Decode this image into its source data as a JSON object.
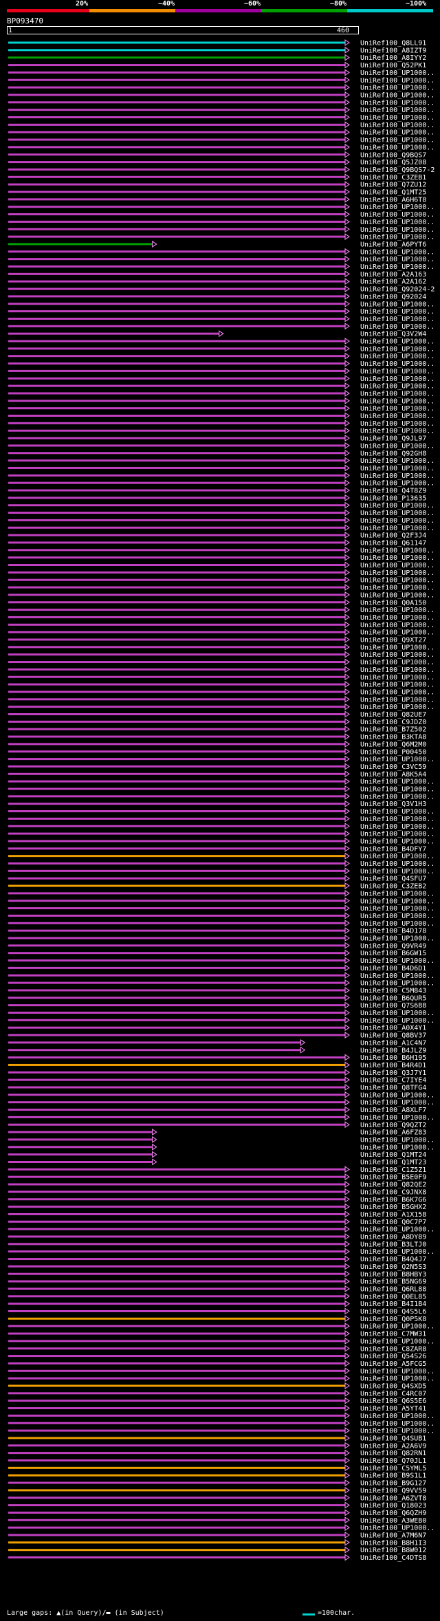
{
  "legend": {
    "labels": [
      "20%",
      "~40%",
      "~60%",
      "~80%",
      "~100%"
    ],
    "colors": [
      "#e6001a",
      "#f28c00",
      "#a000a0",
      "#00a000",
      "#00c8c8"
    ]
  },
  "query": {
    "title": "BP093470",
    "start": "1",
    "end": "460"
  },
  "hit_colors": {
    "cyan": "#00d2d2",
    "green": "#00a000",
    "magenta": "#c040c0",
    "orange": "#f0a000",
    "arrow": "#ff90ff"
  },
  "hits": [
    {
      "label": "UniRef100_Q8LL91",
      "color": "cyan",
      "end": 460
    },
    {
      "label": "UniRef100_A8IZT9",
      "color": "cyan",
      "end": 460
    },
    {
      "label": "UniRef100_A8IYY2",
      "color": "green",
      "end": 460
    },
    {
      "label": "UniRef100_Q52PK1",
      "color": "magenta",
      "end": 460
    },
    {
      "label": "UniRef100_UP1000..",
      "color": "magenta",
      "end": 460
    },
    {
      "label": "UniRef100_UP1000..",
      "color": "magenta",
      "end": 460
    },
    {
      "label": "UniRef100_UP1000..",
      "color": "magenta",
      "end": 460
    },
    {
      "label": "UniRef100_UP1000..",
      "color": "magenta",
      "end": 460
    },
    {
      "label": "UniRef100_UP1000..",
      "color": "magenta",
      "end": 460
    },
    {
      "label": "UniRef100_UP1000..",
      "color": "magenta",
      "end": 460
    },
    {
      "label": "UniRef100_UP1000..",
      "color": "magenta",
      "end": 460
    },
    {
      "label": "UniRef100_UP1000..",
      "color": "magenta",
      "end": 460
    },
    {
      "label": "UniRef100_UP1000..",
      "color": "magenta",
      "end": 460
    },
    {
      "label": "UniRef100_UP1000..",
      "color": "magenta",
      "end": 460
    },
    {
      "label": "UniRef100_UP1000..",
      "color": "magenta",
      "end": 460
    },
    {
      "label": "UniRef100_Q9BQS7",
      "color": "magenta",
      "end": 460
    },
    {
      "label": "UniRef100_Q5JZ08",
      "color": "magenta",
      "end": 460
    },
    {
      "label": "UniRef100_Q9BQS7-2",
      "color": "magenta",
      "end": 460
    },
    {
      "label": "UniRef100_C3ZEB1",
      "color": "magenta",
      "end": 460
    },
    {
      "label": "UniRef100_Q7ZU12",
      "color": "magenta",
      "end": 460
    },
    {
      "label": "UniRef100_Q1MT25",
      "color": "magenta",
      "end": 460
    },
    {
      "label": "UniRef100_A6H6T8",
      "color": "magenta",
      "end": 460
    },
    {
      "label": "UniRef100_UP1000..",
      "color": "magenta",
      "end": 460
    },
    {
      "label": "UniRef100_UP1000..",
      "color": "magenta",
      "end": 460
    },
    {
      "label": "UniRef100_UP1000..",
      "color": "magenta",
      "end": 460
    },
    {
      "label": "UniRef100_UP1000..",
      "color": "magenta",
      "end": 460
    },
    {
      "label": "UniRef100_UP1000..",
      "color": "magenta",
      "end": 460
    },
    {
      "label": "UniRef100_A6PYT6",
      "color": "green",
      "end": 200
    },
    {
      "label": "UniRef100_UP1000..",
      "color": "magenta",
      "end": 460
    },
    {
      "label": "UniRef100_UP1000..",
      "color": "magenta",
      "end": 460
    },
    {
      "label": "UniRef100_UP1000..",
      "color": "magenta",
      "end": 460
    },
    {
      "label": "UniRef100_A2A163",
      "color": "magenta",
      "end": 460
    },
    {
      "label": "UniRef100_A2A162",
      "color": "magenta",
      "end": 460
    },
    {
      "label": "UniRef100_Q92024-2",
      "color": "magenta",
      "end": 460
    },
    {
      "label": "UniRef100_Q92024",
      "color": "magenta",
      "end": 460
    },
    {
      "label": "UniRef100_UP1000..",
      "color": "magenta",
      "end": 460
    },
    {
      "label": "UniRef100_UP1000..",
      "color": "magenta",
      "end": 460
    },
    {
      "label": "UniRef100_UP1000..",
      "color": "magenta",
      "end": 460
    },
    {
      "label": "UniRef100_UP1000..",
      "color": "magenta",
      "end": 460
    },
    {
      "label": "UniRef100_Q3V2W4",
      "color": "magenta",
      "end": 290
    },
    {
      "label": "UniRef100_UP1000..",
      "color": "magenta",
      "end": 460
    },
    {
      "label": "UniRef100_UP1000..",
      "color": "magenta",
      "end": 460
    },
    {
      "label": "UniRef100_UP1000..",
      "color": "magenta",
      "end": 460
    },
    {
      "label": "UniRef100_UP1000..",
      "color": "magenta",
      "end": 460
    },
    {
      "label": "UniRef100_UP1000..",
      "color": "magenta",
      "end": 460
    },
    {
      "label": "UniRef100_UP1000..",
      "color": "magenta",
      "end": 460
    },
    {
      "label": "UniRef100_UP1000..",
      "color": "magenta",
      "end": 460
    },
    {
      "label": "UniRef100_UP1000..",
      "color": "magenta",
      "end": 460
    },
    {
      "label": "UniRef100_UP1000..",
      "color": "magenta",
      "end": 460
    },
    {
      "label": "UniRef100_UP1000..",
      "color": "magenta",
      "end": 460
    },
    {
      "label": "UniRef100_UP1000..",
      "color": "magenta",
      "end": 460
    },
    {
      "label": "UniRef100_UP1000..",
      "color": "magenta",
      "end": 460
    },
    {
      "label": "UniRef100_UP1000..",
      "color": "magenta",
      "end": 460
    },
    {
      "label": "UniRef100_Q9JL97",
      "color": "magenta",
      "end": 460
    },
    {
      "label": "UniRef100_UP1000..",
      "color": "magenta",
      "end": 460
    },
    {
      "label": "UniRef100_Q92GH8",
      "color": "magenta",
      "end": 460
    },
    {
      "label": "UniRef100_UP1000..",
      "color": "magenta",
      "end": 460
    },
    {
      "label": "UniRef100_UP1000..",
      "color": "magenta",
      "end": 460
    },
    {
      "label": "UniRef100_UP1000..",
      "color": "magenta",
      "end": 460
    },
    {
      "label": "UniRef100_UP1000..",
      "color": "magenta",
      "end": 460
    },
    {
      "label": "UniRef100_Q4T8Z9",
      "color": "magenta",
      "end": 460
    },
    {
      "label": "UniRef100_P13635",
      "color": "magenta",
      "end": 460
    },
    {
      "label": "UniRef100_UP1000..",
      "color": "magenta",
      "end": 460
    },
    {
      "label": "UniRef100_UP1000..",
      "color": "magenta",
      "end": 460
    },
    {
      "label": "UniRef100_UP1000..",
      "color": "magenta",
      "end": 460
    },
    {
      "label": "UniRef100_UP1000..",
      "color": "magenta",
      "end": 460
    },
    {
      "label": "UniRef100_Q2F3J4",
      "color": "magenta",
      "end": 460
    },
    {
      "label": "UniRef100_Q61147",
      "color": "magenta",
      "end": 460
    },
    {
      "label": "UniRef100_UP1000..",
      "color": "magenta",
      "end": 460
    },
    {
      "label": "UniRef100_UP1000..",
      "color": "magenta",
      "end": 460
    },
    {
      "label": "UniRef100_UP1000..",
      "color": "magenta",
      "end": 460
    },
    {
      "label": "UniRef100_UP1000..",
      "color": "magenta",
      "end": 460
    },
    {
      "label": "UniRef100_UP1000..",
      "color": "magenta",
      "end": 460
    },
    {
      "label": "UniRef100_UP1000..",
      "color": "magenta",
      "end": 460
    },
    {
      "label": "UniRef100_UP1000..",
      "color": "magenta",
      "end": 460
    },
    {
      "label": "UniRef100_Q0A150",
      "color": "magenta",
      "end": 460
    },
    {
      "label": "UniRef100_UP1000..",
      "color": "magenta",
      "end": 460
    },
    {
      "label": "UniRef100_UP1000..",
      "color": "magenta",
      "end": 460
    },
    {
      "label": "UniRef100_UP1000..",
      "color": "magenta",
      "end": 460
    },
    {
      "label": "UniRef100_UP1000..",
      "color": "magenta",
      "end": 460
    },
    {
      "label": "UniRef100_Q9XT27",
      "color": "magenta",
      "end": 460
    },
    {
      "label": "UniRef100_UP1000..",
      "color": "magenta",
      "end": 460
    },
    {
      "label": "UniRef100_UP1000..",
      "color": "magenta",
      "end": 460
    },
    {
      "label": "UniRef100_UP1000..",
      "color": "magenta",
      "end": 460
    },
    {
      "label": "UniRef100_UP1000..",
      "color": "magenta",
      "end": 460
    },
    {
      "label": "UniRef100_UP1000..",
      "color": "magenta",
      "end": 460
    },
    {
      "label": "UniRef100_UP1000..",
      "color": "magenta",
      "end": 460
    },
    {
      "label": "UniRef100_UP1000..",
      "color": "magenta",
      "end": 460
    },
    {
      "label": "UniRef100_UP1000..",
      "color": "magenta",
      "end": 460
    },
    {
      "label": "UniRef100_UP1000..",
      "color": "magenta",
      "end": 460
    },
    {
      "label": "UniRef100_Q82UE7",
      "color": "magenta",
      "end": 460
    },
    {
      "label": "UniRef100_C9JDZ0",
      "color": "magenta",
      "end": 460
    },
    {
      "label": "UniRef100_B7Z502",
      "color": "magenta",
      "end": 460
    },
    {
      "label": "UniRef100_B3KTA8",
      "color": "magenta",
      "end": 460
    },
    {
      "label": "UniRef100_Q6M2M0",
      "color": "magenta",
      "end": 460
    },
    {
      "label": "UniRef100_P00450",
      "color": "magenta",
      "end": 460
    },
    {
      "label": "UniRef100_UP1000..",
      "color": "magenta",
      "end": 460
    },
    {
      "label": "UniRef100_C3VC59",
      "color": "magenta",
      "end": 460
    },
    {
      "label": "UniRef100_A8K5A4",
      "color": "magenta",
      "end": 460
    },
    {
      "label": "UniRef100_UP1000..",
      "color": "magenta",
      "end": 460
    },
    {
      "label": "UniRef100_UP1000..",
      "color": "magenta",
      "end": 460
    },
    {
      "label": "UniRef100_UP1000..",
      "color": "magenta",
      "end": 460
    },
    {
      "label": "UniRef100_Q3V1H3",
      "color": "magenta",
      "end": 460
    },
    {
      "label": "UniRef100_UP1000..",
      "color": "magenta",
      "end": 460
    },
    {
      "label": "UniRef100_UP1000..",
      "color": "magenta",
      "end": 460
    },
    {
      "label": "UniRef100_UP1000..",
      "color": "magenta",
      "end": 460
    },
    {
      "label": "UniRef100_UP1000..",
      "color": "magenta",
      "end": 460
    },
    {
      "label": "UniRef100_UP1000..",
      "color": "magenta",
      "end": 460
    },
    {
      "label": "UniRef100_B4DFY7",
      "color": "magenta",
      "end": 460
    },
    {
      "label": "UniRef100_UP1000..",
      "color": "orange",
      "end": 460
    },
    {
      "label": "UniRef100_UP1000..",
      "color": "magenta",
      "end": 460
    },
    {
      "label": "UniRef100_UP1000..",
      "color": "magenta",
      "end": 460
    },
    {
      "label": "UniRef100_Q4SFU7",
      "color": "magenta",
      "end": 460
    },
    {
      "label": "UniRef100_C3ZEB2",
      "color": "orange",
      "end": 460
    },
    {
      "label": "UniRef100_UP1000..",
      "color": "magenta",
      "end": 460
    },
    {
      "label": "UniRef100_UP1000..",
      "color": "magenta",
      "end": 460
    },
    {
      "label": "UniRef100_UP1000..",
      "color": "magenta",
      "end": 460
    },
    {
      "label": "UniRef100_UP1000..",
      "color": "magenta",
      "end": 460
    },
    {
      "label": "UniRef100_UP1000..",
      "color": "magenta",
      "end": 460
    },
    {
      "label": "UniRef100_B4D178",
      "color": "magenta",
      "end": 460
    },
    {
      "label": "UniRef100_UP1000..",
      "color": "magenta",
      "end": 460
    },
    {
      "label": "UniRef100_Q9VR49",
      "color": "magenta",
      "end": 460
    },
    {
      "label": "UniRef100_B6GW15",
      "color": "magenta",
      "end": 460
    },
    {
      "label": "UniRef100_UP1000..",
      "color": "magenta",
      "end": 460
    },
    {
      "label": "UniRef100_B4D6D1",
      "color": "magenta",
      "end": 460
    },
    {
      "label": "UniRef100_UP1000..",
      "color": "magenta",
      "end": 460
    },
    {
      "label": "UniRef100_UP1000..",
      "color": "magenta",
      "end": 460
    },
    {
      "label": "UniRef100_C5M843",
      "color": "magenta",
      "end": 460
    },
    {
      "label": "UniRef100_B6QUR5",
      "color": "magenta",
      "end": 460
    },
    {
      "label": "UniRef100_Q7S6B8",
      "color": "magenta",
      "end": 460
    },
    {
      "label": "UniRef100_UP1000..",
      "color": "magenta",
      "end": 460
    },
    {
      "label": "UniRef100_UP1000..",
      "color": "magenta",
      "end": 460
    },
    {
      "label": "UniRef100_A0X4Y1",
      "color": "magenta",
      "end": 460
    },
    {
      "label": "UniRef100_Q8BV37",
      "color": "magenta",
      "end": 460
    },
    {
      "label": "UniRef100_A1C4N7",
      "color": "magenta",
      "end": 400
    },
    {
      "label": "UniRef100_B4JLZ9",
      "color": "magenta",
      "end": 400
    },
    {
      "label": "UniRef100_B6H195",
      "color": "magenta",
      "end": 460
    },
    {
      "label": "UniRef100_B4R4D1",
      "color": "orange",
      "end": 460
    },
    {
      "label": "UniRef100_Q3J7Y1",
      "color": "magenta",
      "end": 460
    },
    {
      "label": "UniRef100_C7IYE4",
      "color": "magenta",
      "end": 460
    },
    {
      "label": "UniRef100_Q8TFG4",
      "color": "magenta",
      "end": 460
    },
    {
      "label": "UniRef100_UP1000..",
      "color": "magenta",
      "end": 460
    },
    {
      "label": "UniRef100_UP1000..",
      "color": "magenta",
      "end": 460
    },
    {
      "label": "UniRef100_A8XLF7",
      "color": "magenta",
      "end": 460
    },
    {
      "label": "UniRef100_UP1000..",
      "color": "magenta",
      "end": 460
    },
    {
      "label": "UniRef100_Q9QZT2",
      "color": "magenta",
      "end": 460
    },
    {
      "label": "UniRef100_A6FZ83",
      "color": "magenta",
      "end": 200
    },
    {
      "label": "UniRef100_UP1000..",
      "color": "magenta",
      "end": 200
    },
    {
      "label": "UniRef100_UP1000..",
      "color": "magenta",
      "end": 200
    },
    {
      "label": "UniRef100_Q1MT24",
      "color": "magenta",
      "end": 200
    },
    {
      "label": "UniRef100_Q1MT23",
      "color": "magenta",
      "end": 200
    },
    {
      "label": "UniRef100_C1Z5Z1",
      "color": "magenta",
      "end": 460
    },
    {
      "label": "UniRef100_B5E0F9",
      "color": "magenta",
      "end": 460
    },
    {
      "label": "UniRef100_Q82QE2",
      "color": "magenta",
      "end": 460
    },
    {
      "label": "UniRef100_C9JNX8",
      "color": "magenta",
      "end": 460
    },
    {
      "label": "UniRef100_B6K7G6",
      "color": "magenta",
      "end": 460
    },
    {
      "label": "UniRef100_B5GHX2",
      "color": "magenta",
      "end": 460
    },
    {
      "label": "UniRef100_A1X158",
      "color": "magenta",
      "end": 460
    },
    {
      "label": "UniRef100_Q0C7P7",
      "color": "magenta",
      "end": 460
    },
    {
      "label": "UniRef100_UP1000..",
      "color": "magenta",
      "end": 460
    },
    {
      "label": "UniRef100_A8DY89",
      "color": "magenta",
      "end": 460
    },
    {
      "label": "UniRef100_B3LTJ0",
      "color": "magenta",
      "end": 460
    },
    {
      "label": "UniRef100_UP1000..",
      "color": "magenta",
      "end": 460
    },
    {
      "label": "UniRef100_B4Q4J7",
      "color": "magenta",
      "end": 460
    },
    {
      "label": "UniRef100_Q2N5S3",
      "color": "magenta",
      "end": 460
    },
    {
      "label": "UniRef100_B8HBY3",
      "color": "magenta",
      "end": 460
    },
    {
      "label": "UniRef100_B5NG69",
      "color": "magenta",
      "end": 460
    },
    {
      "label": "UniRef100_Q6RL88",
      "color": "magenta",
      "end": 460
    },
    {
      "label": "UniRef100_Q0EL85",
      "color": "magenta",
      "end": 460
    },
    {
      "label": "UniRef100_B4I1B4",
      "color": "magenta",
      "end": 460
    },
    {
      "label": "UniRef100_Q4S5L6",
      "color": "magenta",
      "end": 460
    },
    {
      "label": "UniRef100_Q0P5K8",
      "color": "orange",
      "end": 460
    },
    {
      "label": "UniRef100_UP1000..",
      "color": "magenta",
      "end": 460
    },
    {
      "label": "UniRef100_C7MW31",
      "color": "magenta",
      "end": 460
    },
    {
      "label": "UniRef100_UP1000..",
      "color": "magenta",
      "end": 460
    },
    {
      "label": "UniRef100_C8ZAR8",
      "color": "magenta",
      "end": 460
    },
    {
      "label": "UniRef100_Q54S26",
      "color": "magenta",
      "end": 460
    },
    {
      "label": "UniRef100_A5FCG5",
      "color": "magenta",
      "end": 460
    },
    {
      "label": "UniRef100_UP1000..",
      "color": "magenta",
      "end": 460
    },
    {
      "label": "UniRef100_UP1000..",
      "color": "magenta",
      "end": 460
    },
    {
      "label": "UniRef100_Q4SXD5",
      "color": "orange",
      "end": 460
    },
    {
      "label": "UniRef100_C4RC07",
      "color": "magenta",
      "end": 460
    },
    {
      "label": "UniRef100_Q6S5E6",
      "color": "magenta",
      "end": 460
    },
    {
      "label": "UniRef100_A5YT41",
      "color": "magenta",
      "end": 460
    },
    {
      "label": "UniRef100_UP1000..",
      "color": "magenta",
      "end": 460
    },
    {
      "label": "UniRef100_UP1000..",
      "color": "magenta",
      "end": 460
    },
    {
      "label": "UniRef100_UP1000..",
      "color": "magenta",
      "end": 460
    },
    {
      "label": "UniRef100_Q4SUB1",
      "color": "orange",
      "end": 460
    },
    {
      "label": "UniRef100_A2A6V9",
      "color": "magenta",
      "end": 460
    },
    {
      "label": "UniRef100_Q82RN1",
      "color": "magenta",
      "end": 460
    },
    {
      "label": "UniRef100_Q70JL1",
      "color": "magenta",
      "end": 460
    },
    {
      "label": "UniRef100_C5YML5",
      "color": "orange",
      "end": 460
    },
    {
      "label": "UniRef100_B9S1L1",
      "color": "orange",
      "end": 460
    },
    {
      "label": "UniRef100_B9G127",
      "color": "magenta",
      "end": 460
    },
    {
      "label": "UniRef100_Q9VV59",
      "color": "orange",
      "end": 460
    },
    {
      "label": "UniRef100_A6ZVT8",
      "color": "magenta",
      "end": 460
    },
    {
      "label": "UniRef100_Q18023",
      "color": "magenta",
      "end": 460
    },
    {
      "label": "UniRef100_Q6QZH9",
      "color": "magenta",
      "end": 460
    },
    {
      "label": "UniRef100_A3WEB0",
      "color": "magenta",
      "end": 460
    },
    {
      "label": "UniRef100_UP1000..",
      "color": "magenta",
      "end": 460
    },
    {
      "label": "UniRef100_A7M6N7",
      "color": "magenta",
      "end": 460
    },
    {
      "label": "UniRef100_B8H1I3",
      "color": "orange",
      "end": 460
    },
    {
      "label": "UniRef100_B8W012",
      "color": "orange",
      "end": 460
    },
    {
      "label": "UniRef100_C4DTS8",
      "color": "magenta",
      "end": 460
    }
  ],
  "footer": {
    "gaps_legend": "Large gaps: ▲(in Query)/▬ (in Subject)",
    "scale_label": "=100char."
  }
}
